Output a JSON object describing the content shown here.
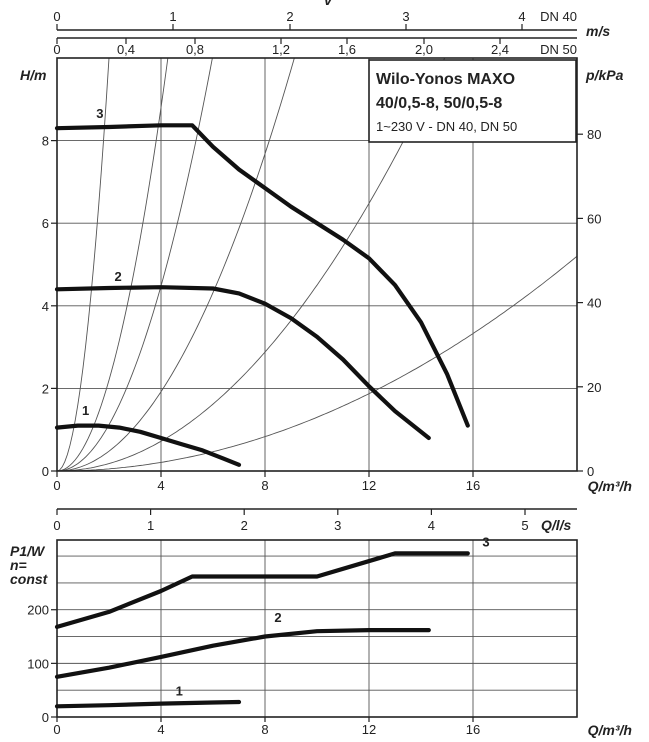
{
  "chart_data": [
    {
      "type": "line",
      "title_lines": [
        "Wilo-Yonos MAXO",
        "40/0,5-8, 50/0,5-8"
      ],
      "subtitle": "1~230 V - DN 40, DN 50",
      "xlabel": "Q/m³/h",
      "ylabel": "H/m",
      "y2label": "p/kPa",
      "top_axis_1_label": "v",
      "top_axis_2_label": "m/s",
      "xlim": [
        0,
        20
      ],
      "ylim": [
        0,
        10
      ],
      "x_ticks": [
        0,
        4,
        8,
        12,
        16
      ],
      "y_ticks": [
        0,
        2,
        4,
        6,
        8
      ],
      "y2_ticks": [
        0,
        20,
        40,
        60,
        80
      ],
      "top_axis_1_ticks": [
        "0",
        "1",
        "2",
        "3",
        "4",
        "DN 40"
      ],
      "top_axis_2_ticks": [
        "0",
        "0,4",
        "0,8",
        "1,2",
        "1,6",
        "2,0",
        "2,4",
        "DN 50"
      ],
      "grid": true,
      "series": [
        {
          "name": "1",
          "x": [
            0,
            0.8,
            1.6,
            2.4,
            3.2,
            4.0,
            4.8,
            5.6,
            6.4,
            7.0
          ],
          "y": [
            1.05,
            1.1,
            1.1,
            1.05,
            0.95,
            0.8,
            0.65,
            0.5,
            0.3,
            0.15
          ]
        },
        {
          "name": "2",
          "x": [
            0,
            2,
            4,
            6,
            7,
            8,
            9,
            10,
            11,
            12,
            13,
            14.3
          ],
          "y": [
            4.4,
            4.43,
            4.45,
            4.42,
            4.3,
            4.05,
            3.7,
            3.25,
            2.7,
            2.05,
            1.45,
            0.8
          ]
        },
        {
          "name": "3",
          "x": [
            0,
            2,
            4,
            5.2,
            6,
            7,
            8,
            9,
            10,
            11,
            12,
            13,
            14,
            15,
            15.8
          ],
          "y": [
            8.3,
            8.33,
            8.37,
            8.37,
            7.85,
            7.3,
            6.85,
            6.4,
            6.0,
            5.6,
            5.15,
            4.5,
            3.6,
            2.35,
            1.1
          ]
        }
      ],
      "system_curve_multipliers": [
        2.5,
        0.55,
        0.28,
        0.12,
        0.045,
        0.013
      ],
      "curve_labels": [
        "1",
        "2",
        "3"
      ]
    },
    {
      "type": "line",
      "xlabel": "Q/m³/h",
      "x2label": "Q/l/s",
      "ylabel_lines": [
        "P1/W",
        "n=",
        "const"
      ],
      "xlim": [
        0,
        20
      ],
      "ylim": [
        0,
        330
      ],
      "x_ticks": [
        0,
        4,
        8,
        12,
        16
      ],
      "x2_ticks": [
        0,
        1,
        2,
        3,
        4,
        5
      ],
      "y_ticks": [
        0,
        100,
        200
      ],
      "grid": true,
      "series": [
        {
          "name": "1",
          "x": [
            0,
            2,
            4,
            6,
            7
          ],
          "y": [
            20,
            22,
            25,
            27,
            28
          ]
        },
        {
          "name": "2",
          "x": [
            0,
            2,
            4,
            6,
            8,
            10,
            12,
            14.3
          ],
          "y": [
            75,
            92,
            112,
            133,
            150,
            160,
            162,
            162
          ]
        },
        {
          "name": "3",
          "x": [
            0,
            2,
            4,
            5.2,
            10,
            13,
            15.8
          ],
          "y": [
            168,
            196,
            235,
            262,
            262,
            305,
            305
          ]
        }
      ],
      "curve_labels": [
        "1",
        "2",
        "3"
      ]
    }
  ]
}
